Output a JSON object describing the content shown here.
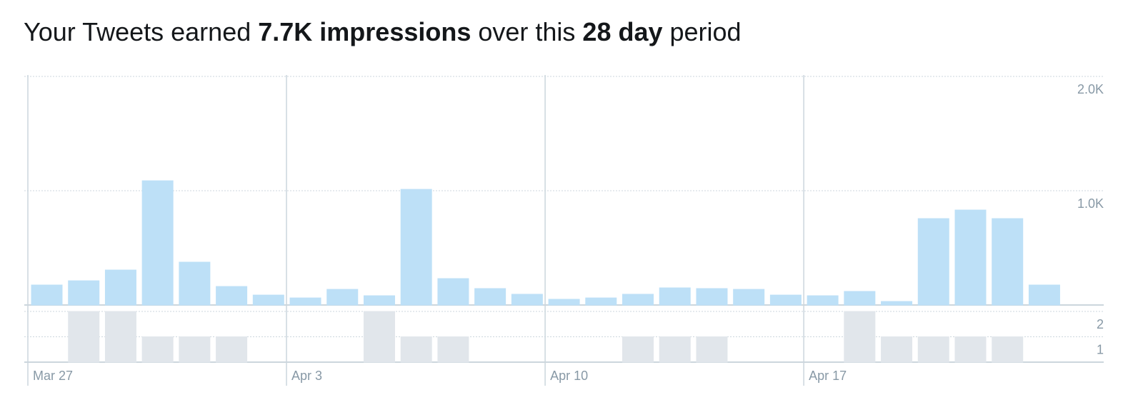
{
  "title": [
    "Your Tweets earned",
    "7.7K impressions",
    "over this",
    "28 day",
    "period"
  ],
  "chart_data": [
    {
      "type": "bar",
      "color": "#bde0f7",
      "values": [
        175,
        212,
        306,
        1087,
        375,
        162,
        87,
        62,
        137,
        81,
        1012,
        231,
        144,
        94,
        50,
        62,
        94,
        150,
        144,
        137,
        87,
        81,
        119,
        31,
        756,
        831,
        756,
        175
      ],
      "ylim": [
        0,
        2000
      ],
      "yticks": [
        {
          "value": 1000,
          "label": "1.0K"
        },
        {
          "value": 2000,
          "label": "2.0K"
        }
      ],
      "grid": true
    },
    {
      "type": "bar",
      "color": "#e1e6eb",
      "categories": [
        "Mar 27",
        null,
        null,
        null,
        null,
        null,
        null,
        "Apr 3",
        null,
        null,
        null,
        null,
        null,
        null,
        "Apr 10",
        null,
        null,
        null,
        null,
        null,
        null,
        "Apr 17",
        null,
        null,
        null,
        null,
        null,
        null
      ],
      "values": [
        0,
        2,
        2,
        1,
        1,
        1,
        0,
        0,
        0,
        2,
        1,
        1,
        0,
        0,
        0,
        0,
        1,
        1,
        1,
        0,
        0,
        0,
        2,
        1,
        1,
        1,
        1,
        0
      ],
      "ylim": [
        0,
        2
      ],
      "yticks": [
        1,
        2
      ],
      "grid": true
    }
  ]
}
